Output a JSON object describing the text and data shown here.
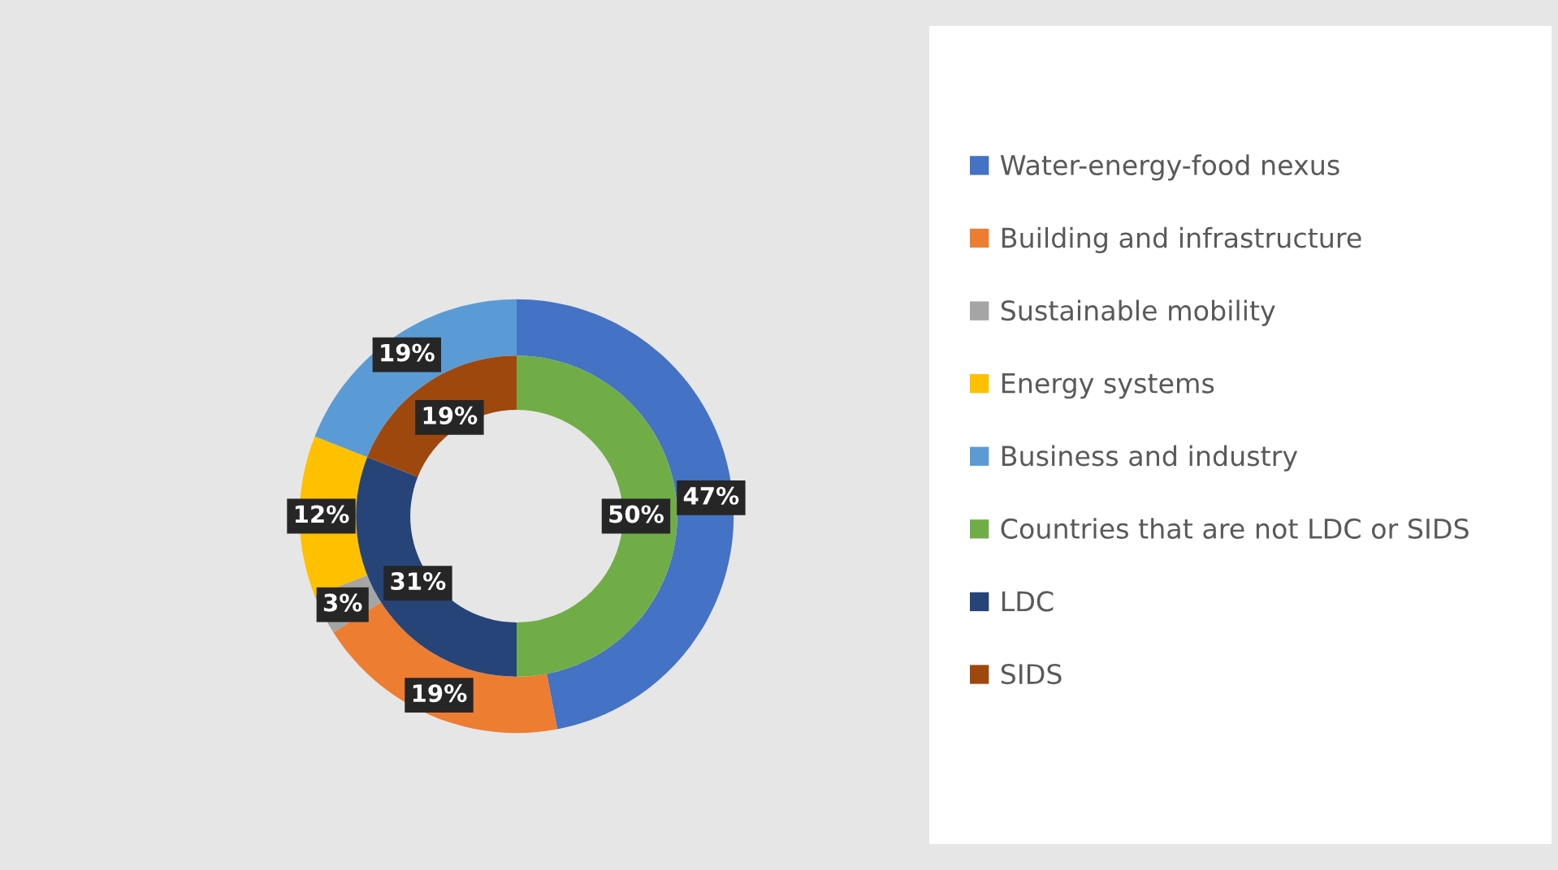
{
  "chart_data": {
    "type": "donut",
    "legend": "right",
    "categories": [
      "Water-energy-food nexus",
      "Building and infrastructure",
      "Sustainable mobility",
      "Energy systems",
      "Business and industry",
      "Countries that are not LDC or SIDS",
      "LDC",
      "SIDS"
    ],
    "colors": [
      "#4472c4",
      "#ed7d31",
      "#a5a5a5",
      "#ffc000",
      "#5b9bd5",
      "#70ad47",
      "#264478",
      "#9e480e"
    ],
    "series": [
      {
        "values": [
          47,
          19,
          3,
          12,
          19,
          null,
          null,
          null
        ],
        "value_labels": [
          "47%",
          "19%",
          "3%",
          "12%",
          "19%",
          null,
          null,
          null
        ]
      },
      {
        "values": [
          null,
          null,
          null,
          null,
          null,
          50,
          31,
          19
        ],
        "value_labels": [
          null,
          null,
          null,
          null,
          null,
          "50%",
          "31%",
          "19%"
        ]
      }
    ]
  }
}
